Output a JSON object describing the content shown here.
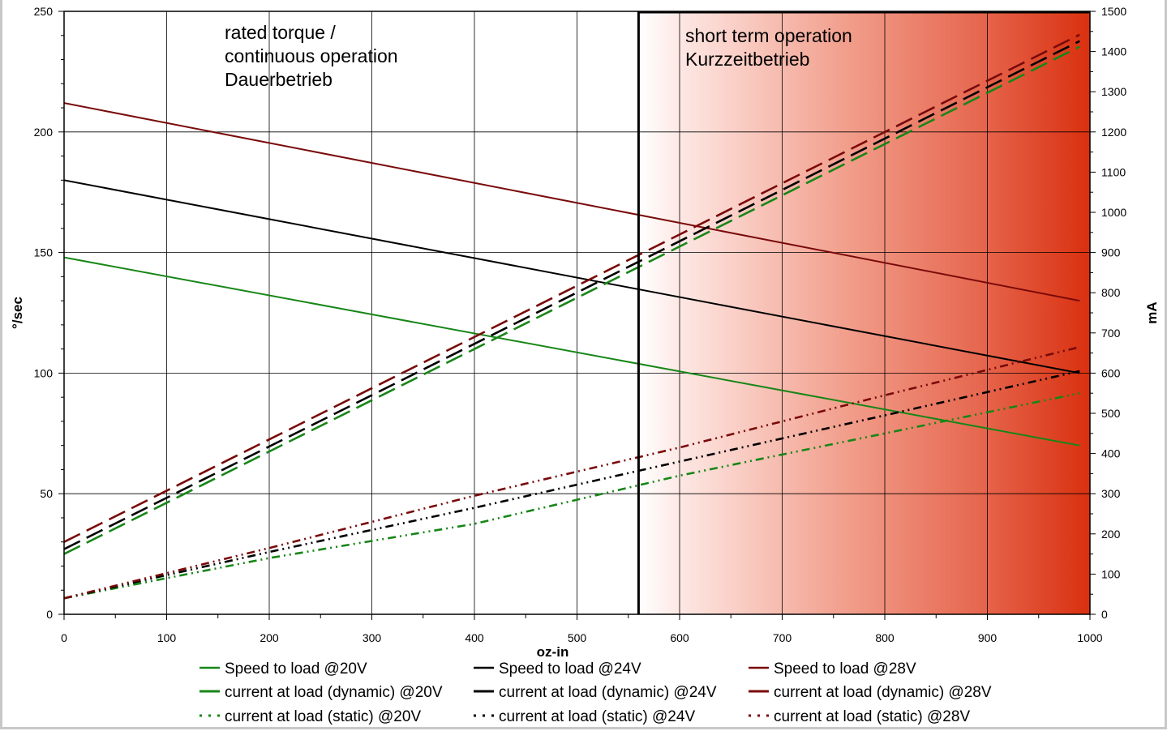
{
  "chart_data": {
    "type": "line",
    "xlabel": "oz-in",
    "ylabel": "°/sec",
    "y2label": "mA",
    "xlim": [
      0,
      1000
    ],
    "ylim": [
      0,
      250
    ],
    "y2lim": [
      0,
      1500
    ],
    "x_ticks": [
      0,
      100,
      200,
      300,
      400,
      500,
      600,
      700,
      800,
      900,
      1000
    ],
    "y_ticks": [
      0,
      50,
      100,
      150,
      200,
      250
    ],
    "y2_ticks": [
      0,
      100,
      200,
      300,
      400,
      500,
      600,
      700,
      800,
      900,
      1000,
      1100,
      1200,
      1300,
      1400,
      1500
    ],
    "grid": true,
    "legend_placement": "bottom",
    "regions": [
      {
        "x_from": 0,
        "x_to": 560,
        "lines": [
          "rated torque /",
          "continuous operation",
          "Dauerbetrieb"
        ],
        "fill": "none"
      },
      {
        "x_from": 560,
        "x_to": 1000,
        "lines": [
          "short term operation",
          "Kurzzeitbetrieb"
        ],
        "fill": "gradient-red"
      }
    ],
    "boundary_x": 560,
    "series": [
      {
        "name": "Speed to load @20V",
        "axis": "left",
        "style": "solid",
        "color": "#178617",
        "x": [
          0,
          990
        ],
        "y": [
          148,
          70
        ]
      },
      {
        "name": "Speed to load @24V",
        "axis": "left",
        "style": "solid",
        "color": "#000000",
        "x": [
          0,
          990
        ],
        "y": [
          180,
          100
        ]
      },
      {
        "name": "Speed to load @28V",
        "axis": "left",
        "style": "solid",
        "color": "#7a0a0a",
        "x": [
          0,
          990
        ],
        "y": [
          212,
          130
        ]
      },
      {
        "name": "current at load (dynamic) @20V",
        "axis": "right",
        "style": "dash",
        "color": "#178617",
        "x": [
          0,
          990
        ],
        "y": [
          150,
          1412
        ]
      },
      {
        "name": "current at load (dynamic) @24V",
        "axis": "right",
        "style": "dash",
        "color": "#000000",
        "x": [
          0,
          990
        ],
        "y": [
          162,
          1426
        ]
      },
      {
        "name": "current at load (dynamic) @28V",
        "axis": "right",
        "style": "dash",
        "color": "#7a0a0a",
        "x": [
          0,
          990
        ],
        "y": [
          180,
          1442
        ]
      },
      {
        "name": "current at load (static) @20V",
        "axis": "right",
        "style": "dashdotdot",
        "color": "#178617",
        "x": [
          0,
          200,
          400,
          600,
          800,
          990
        ],
        "y": [
          40,
          140,
          225,
          345,
          450,
          550
        ]
      },
      {
        "name": "current at load (static) @24V",
        "axis": "right",
        "style": "dashdotdot",
        "color": "#000000",
        "x": [
          0,
          200,
          400,
          600,
          800,
          990
        ],
        "y": [
          40,
          155,
          265,
          380,
          495,
          605
        ]
      },
      {
        "name": "current at load (static) @28V",
        "axis": "right",
        "style": "dashdotdot",
        "color": "#7a0a0a",
        "x": [
          0,
          200,
          400,
          600,
          800,
          990
        ],
        "y": [
          40,
          165,
          295,
          415,
          545,
          665
        ]
      }
    ]
  }
}
